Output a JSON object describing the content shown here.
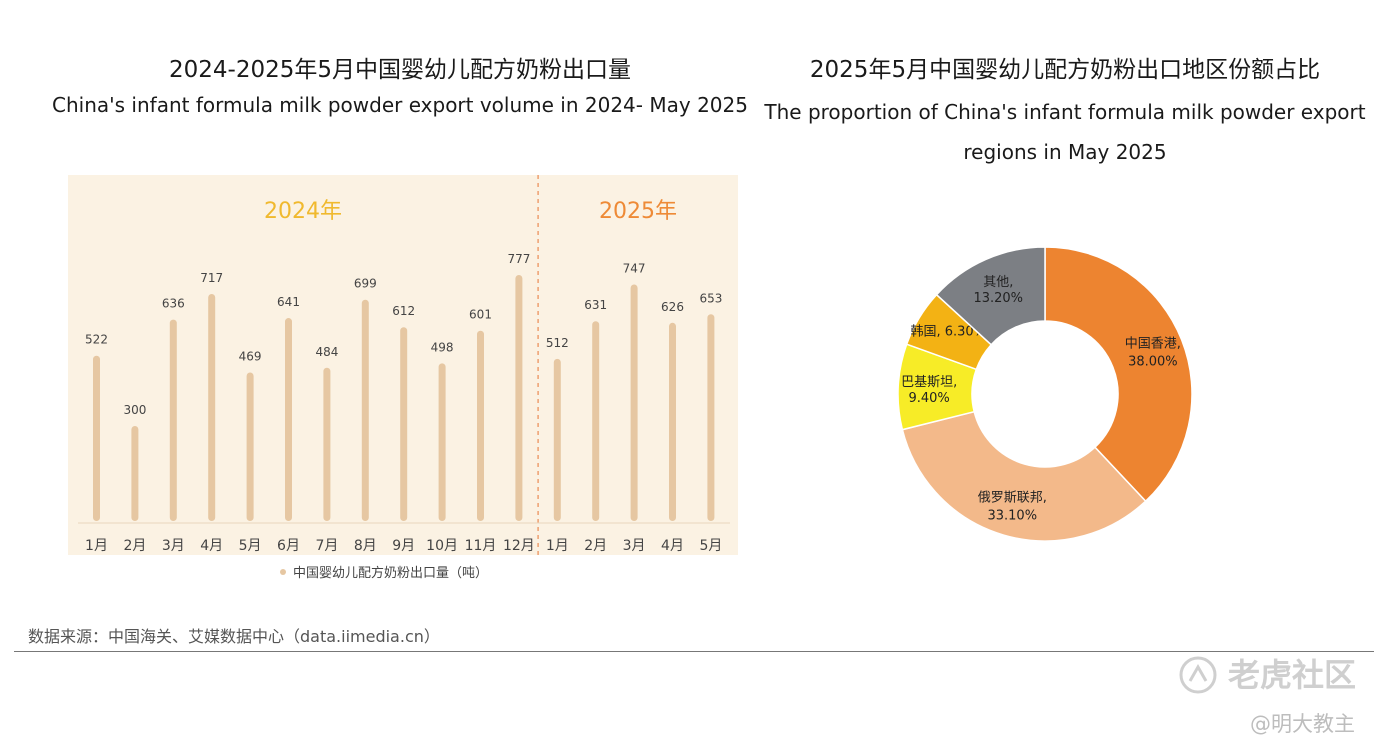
{
  "left_title_cn": "2024-2025年5月中国婴幼儿配方奶粉出口量",
  "left_title_en": "China's infant formula milk powder export volume in 2024- May 2025",
  "right_title_cn": "2025年5月中国婴幼儿配方奶粉出口地区份额占比",
  "right_title_en": "The proportion of China's infant formula milk powder export regions in May 2025",
  "source": "数据来源：中国海关、艾媒数据中心（data.iimedia.cn）",
  "watermark": {
    "brand": "老虎社区",
    "author": "@明大教主"
  },
  "colors": {
    "panel_bg": "#fbf2e3",
    "year_2024": "#f0b92e",
    "year_2025": "#ee8a36",
    "bar": "#e6c7a2",
    "divider": "#eea070"
  },
  "chart_data": [
    {
      "type": "bar",
      "groups": [
        {
          "label": "2024年",
          "months": 12
        },
        {
          "label": "2025年",
          "months": 5
        }
      ],
      "categories": [
        "1月",
        "2月",
        "3月",
        "4月",
        "5月",
        "6月",
        "7月",
        "8月",
        "9月",
        "10月",
        "11月",
        "12月",
        "1月",
        "2月",
        "3月",
        "4月",
        "5月"
      ],
      "series": [
        {
          "name": "中国婴幼儿配方奶粉出口量（吨）",
          "values": [
            522,
            300,
            636,
            717,
            469,
            641,
            484,
            699,
            612,
            498,
            601,
            777,
            512,
            631,
            747,
            626,
            653
          ]
        }
      ]
    },
    {
      "type": "pie",
      "slices": [
        {
          "label": "中国香港,",
          "pct": "38.00%",
          "value": 38.0,
          "color": "#ed8430"
        },
        {
          "label": "俄罗斯联邦,",
          "pct": "33.10%",
          "value": 33.1,
          "color": "#f3b98a"
        },
        {
          "label": "巴基斯坦,",
          "pct": "9.40%",
          "value": 9.4,
          "color": "#f7ec27"
        },
        {
          "label": "韩国,",
          "pct": "6.30%",
          "value": 6.3,
          "color": "#f3b214"
        },
        {
          "label": "其他,",
          "pct": "13.20%",
          "value": 13.2,
          "color": "#7c7f84"
        }
      ]
    }
  ]
}
